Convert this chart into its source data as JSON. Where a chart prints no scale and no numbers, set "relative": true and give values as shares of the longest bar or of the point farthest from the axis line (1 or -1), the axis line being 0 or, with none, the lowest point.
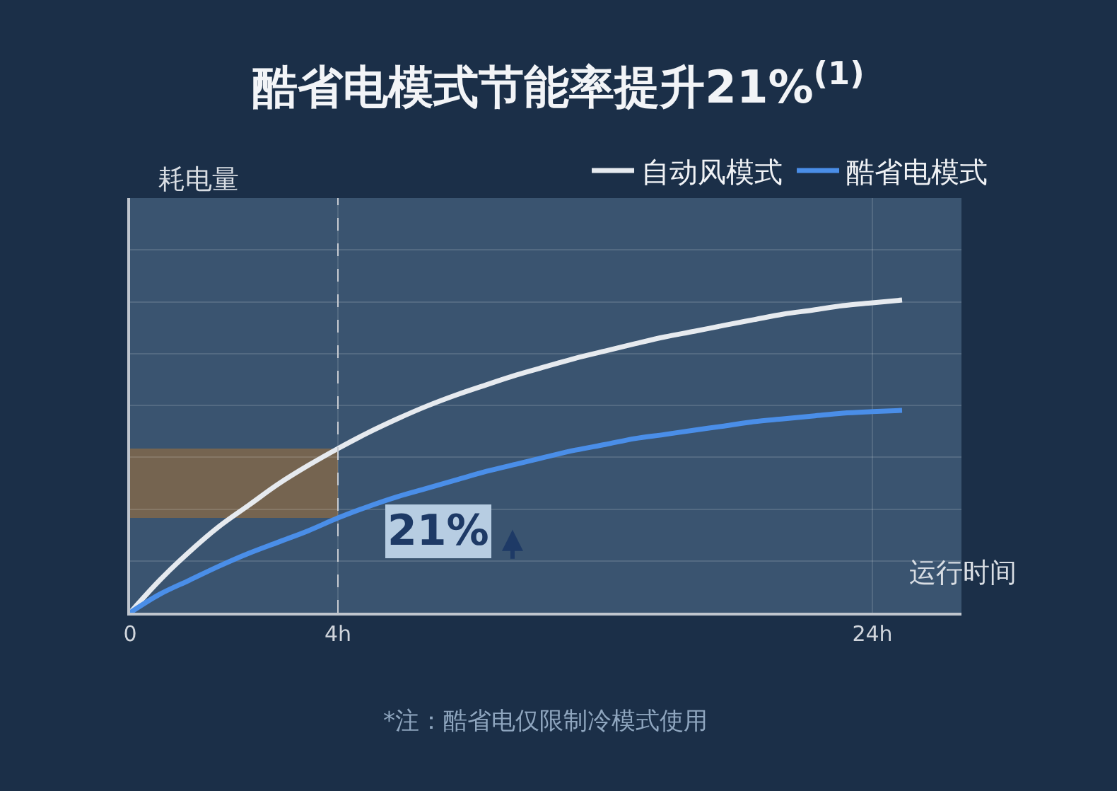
{
  "chart_data": {
    "type": "line",
    "relative": true,
    "title": "酷省电模式节能率提升21%$^{(1)}$",
    "xlabel": "运行时间",
    "ylabel": "耗电量",
    "categories": [
      "0",
      null,
      null,
      null,
      null,
      null,
      null,
      "4h",
      null,
      null,
      null,
      null,
      null,
      null,
      null,
      null,
      null,
      null,
      null,
      null,
      null,
      null,
      null,
      null,
      null,
      "24h",
      null
    ],
    "series": [
      {
        "name": "自动风模式",
        "color": "#e6eaef",
        "values": [
          0,
          0.104,
          0.195,
          0.276,
          0.344,
          0.412,
          0.471,
          0.525,
          0.575,
          0.62,
          0.661,
          0.697,
          0.729,
          0.76,
          0.787,
          0.814,
          0.837,
          0.86,
          0.882,
          0.9,
          0.919,
          0.937,
          0.955,
          0.968,
          0.982,
          0.991,
          1.0
        ]
      },
      {
        "name": "酷省电模式",
        "color": "#4a8ee8",
        "values": [
          0,
          0.059,
          0.104,
          0.149,
          0.19,
          0.226,
          0.262,
          0.303,
          0.339,
          0.371,
          0.398,
          0.425,
          0.452,
          0.475,
          0.498,
          0.52,
          0.538,
          0.557,
          0.57,
          0.584,
          0.597,
          0.611,
          0.62,
          0.629,
          0.638,
          0.643,
          0.647
        ]
      }
    ],
    "ref_lines": [
      {
        "axis": "x",
        "value": "4h",
        "line_style": "dashed",
        "color": "#c8ccd2"
      }
    ],
    "bands": [
      {
        "axis": "y",
        "from": 0.303,
        "to": 0.525,
        "color": "#8a6a45"
      }
    ],
    "annotations": [
      "21%",
      "*注：酷省电仅限制冷模式使用"
    ],
    "legend": "top right",
    "grid": true,
    "marker": "none",
    "line_style": "solid"
  }
}
